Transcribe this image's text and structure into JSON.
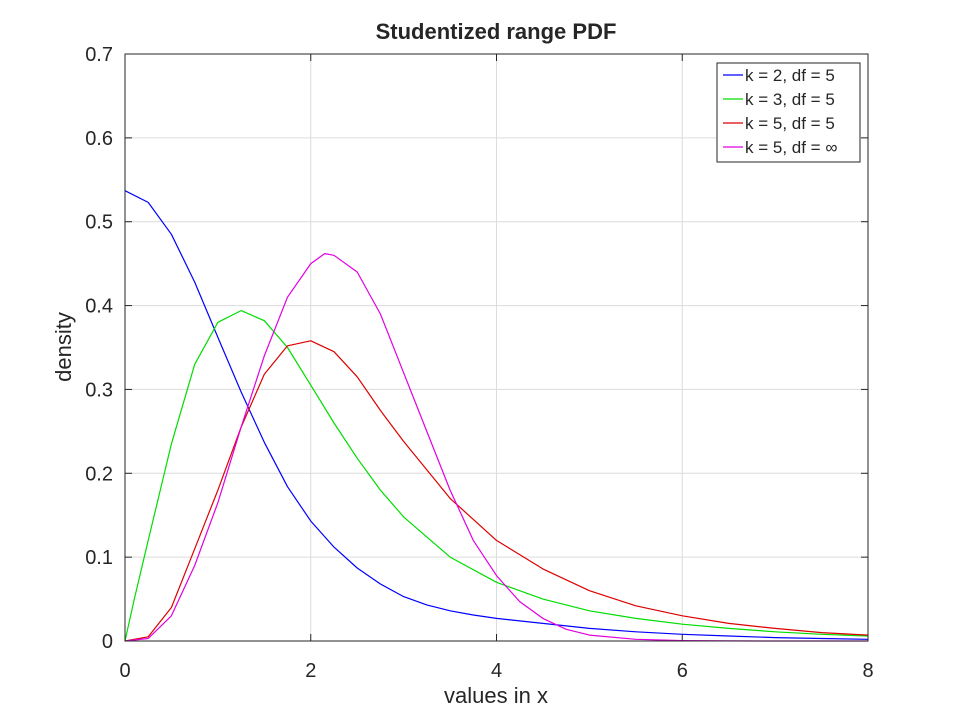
{
  "chart_data": {
    "type": "line",
    "title": "Studentized range PDF",
    "xlabel": "values in x",
    "ylabel": "density",
    "xlim": [
      0,
      8
    ],
    "ylim": [
      0,
      0.7
    ],
    "xticks": [
      0,
      2,
      4,
      6,
      8
    ],
    "yticks": [
      0,
      0.1,
      0.2,
      0.3,
      0.4,
      0.5,
      0.6,
      0.7
    ],
    "grid": true,
    "legend_position": "top-right",
    "series": [
      {
        "name": "k = 2, df = 5",
        "color": "#0000ff",
        "x": [
          0,
          0.25,
          0.5,
          0.75,
          1,
          1.25,
          1.5,
          1.75,
          2,
          2.25,
          2.5,
          2.75,
          3,
          3.25,
          3.5,
          3.75,
          4,
          4.5,
          5,
          5.5,
          6,
          6.5,
          7,
          7.5,
          8
        ],
        "y": [
          0.537,
          0.523,
          0.485,
          0.428,
          0.362,
          0.297,
          0.237,
          0.184,
          0.143,
          0.112,
          0.087,
          0.068,
          0.053,
          0.043,
          0.036,
          0.031,
          0.027,
          0.021,
          0.015,
          0.011,
          0.008,
          0.006,
          0.004,
          0.003,
          0.002
        ]
      },
      {
        "name": "k = 3, df = 5",
        "color": "#00dd00",
        "x": [
          0,
          0.1,
          0.25,
          0.5,
          0.75,
          1,
          1.25,
          1.5,
          1.75,
          2,
          2.25,
          2.5,
          2.75,
          3,
          3.5,
          4,
          4.5,
          5,
          5.5,
          6,
          6.5,
          7,
          7.5,
          8
        ],
        "y": [
          0,
          0.05,
          0.12,
          0.235,
          0.33,
          0.38,
          0.394,
          0.382,
          0.35,
          0.305,
          0.26,
          0.218,
          0.18,
          0.148,
          0.1,
          0.07,
          0.05,
          0.036,
          0.027,
          0.02,
          0.015,
          0.011,
          0.008,
          0.006
        ]
      },
      {
        "name": "k = 5, df = 5",
        "color": "#dd0000",
        "x": [
          0,
          0.25,
          0.5,
          0.75,
          1,
          1.25,
          1.5,
          1.75,
          2,
          2.25,
          2.5,
          2.75,
          3,
          3.5,
          4,
          4.5,
          5,
          5.5,
          6,
          6.5,
          7,
          7.5,
          8
        ],
        "y": [
          0,
          0.005,
          0.04,
          0.11,
          0.18,
          0.255,
          0.318,
          0.352,
          0.358,
          0.345,
          0.315,
          0.275,
          0.238,
          0.17,
          0.12,
          0.086,
          0.06,
          0.042,
          0.03,
          0.021,
          0.015,
          0.01,
          0.007
        ]
      },
      {
        "name": "k = 5, df = ∞",
        "color": "#e000e0",
        "x": [
          0,
          0.25,
          0.5,
          0.75,
          1,
          1.25,
          1.5,
          1.75,
          2,
          2.15,
          2.25,
          2.5,
          2.75,
          3,
          3.25,
          3.5,
          3.75,
          4,
          4.25,
          4.5,
          4.75,
          5,
          5.5,
          6,
          6.5,
          7,
          7.5,
          8
        ],
        "y": [
          0,
          0.003,
          0.03,
          0.09,
          0.165,
          0.255,
          0.34,
          0.41,
          0.45,
          0.462,
          0.46,
          0.44,
          0.39,
          0.32,
          0.25,
          0.18,
          0.12,
          0.078,
          0.047,
          0.027,
          0.014,
          0.007,
          0.002,
          0.0005,
          0.0001,
          0,
          0,
          0
        ]
      }
    ]
  }
}
